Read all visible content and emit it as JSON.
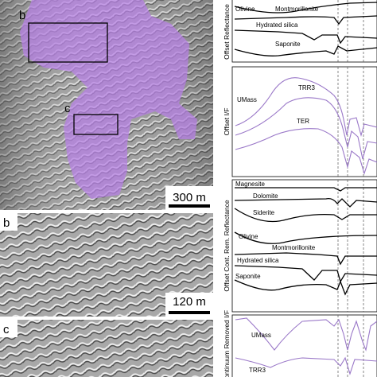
{
  "panel_a": {
    "box_b_label": "b",
    "box_c_label": "c",
    "scale_bar": "300 m"
  },
  "panel_b": {
    "label": "b",
    "scale_bar": "120 m"
  },
  "panel_c": {
    "label": "c"
  },
  "plot_1": {
    "y_label": "Offset Reflectance",
    "curves": [
      "Olivine",
      "Montmorillonite",
      "Hydrated silica",
      "Saponite"
    ]
  },
  "plot_2": {
    "y_label": "Offset I/F",
    "curves": [
      "UMass",
      "TRR3",
      "TER"
    ]
  },
  "plot_3": {
    "y_label": "Offset Cont. Rem. Reflectance",
    "curves": [
      "Magnesite",
      "Dolomite",
      "Siderite",
      "Olivine",
      "Montmorillonite",
      "Hydrated silica",
      "Saponite"
    ]
  },
  "plot_4": {
    "y_label": "Continuum Removed I/F",
    "curves": [
      "UMass",
      "TRR3"
    ]
  }
}
